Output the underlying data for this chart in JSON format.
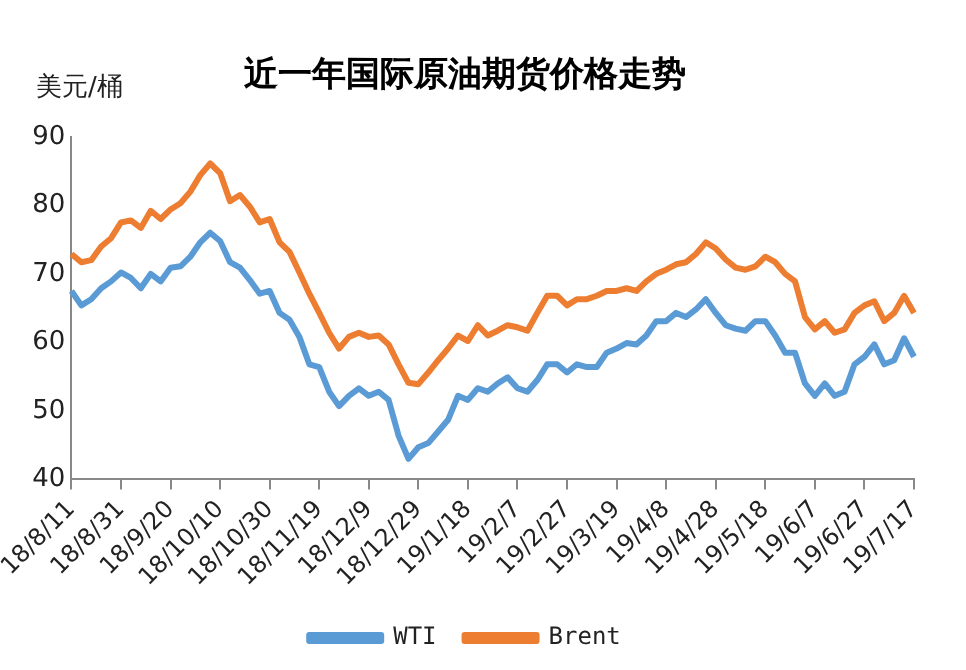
{
  "chart_data": {
    "type": "line",
    "title": "近一年国际原油期货价格走势",
    "ylabel": "美元/桶",
    "categories": [
      "18/8/11",
      null,
      null,
      null,
      null,
      "18/8/31",
      null,
      null,
      null,
      null,
      "18/9/20",
      null,
      null,
      null,
      null,
      "18/10/10",
      null,
      null,
      null,
      null,
      "18/10/30",
      null,
      null,
      null,
      null,
      "18/11/19",
      null,
      null,
      null,
      null,
      "18/12/9",
      null,
      null,
      null,
      null,
      "18/12/29",
      null,
      null,
      null,
      null,
      "19/1/18",
      null,
      null,
      null,
      null,
      "19/2/7",
      null,
      null,
      null,
      null,
      "19/2/27",
      null,
      null,
      null,
      null,
      "19/3/19",
      null,
      null,
      null,
      null,
      "19/4/8",
      null,
      null,
      null,
      null,
      "19/4/28",
      null,
      null,
      null,
      null,
      "19/5/18",
      null,
      null,
      null,
      null,
      "19/6/7",
      null,
      null,
      null,
      null,
      "19/6/27",
      null,
      null,
      null,
      null,
      "19/7/17"
    ],
    "series": [
      {
        "name": "WTI",
        "color": "#5b9bd5",
        "values": [
          67.5,
          65.4,
          66.3,
          67.9,
          68.9,
          70.2,
          69.4,
          67.9,
          70,
          68.9,
          70.9,
          71.1,
          72.5,
          74.6,
          76,
          74.8,
          71.7,
          70.9,
          69.1,
          67.1,
          67.5,
          64.3,
          63.3,
          60.8,
          56.8,
          56.4,
          52.8,
          50.7,
          52.2,
          53.3,
          52.2,
          52.8,
          51.6,
          46.4,
          43,
          44.7,
          45.3,
          47,
          48.7,
          52.2,
          51.6,
          53.3,
          52.8,
          54,
          54.9,
          53.3,
          52.8,
          54.5,
          56.8,
          56.8,
          55.6,
          56.8,
          56.4,
          56.4,
          58.5,
          59.1,
          59.9,
          59.7,
          61,
          63.1,
          63.1,
          64.3,
          63.7,
          64.8,
          66.3,
          64.3,
          62.5,
          62,
          61.7,
          63.1,
          63.1,
          61,
          58.5,
          58.5,
          54,
          52.2,
          54,
          52.2,
          52.8,
          56.8,
          57.9,
          59.7,
          56.8,
          57.4,
          60.6,
          57.9
        ]
      },
      {
        "name": "Brent",
        "color": "#ed7d31",
        "values": [
          72.9,
          71.7,
          72,
          74,
          75.2,
          77.5,
          77.8,
          76.7,
          79.2,
          78,
          79.4,
          80.3,
          82,
          84.4,
          86.1,
          84.7,
          80.6,
          81.5,
          79.8,
          77.5,
          78,
          74.6,
          73.2,
          70.2,
          67.1,
          64.3,
          61.4,
          59.1,
          60.8,
          61.4,
          60.8,
          61,
          59.7,
          56.8,
          54.1,
          53.9,
          55.6,
          57.4,
          59.1,
          61,
          60.2,
          62.5,
          61,
          61.7,
          62.5,
          62.2,
          61.7,
          64.3,
          66.8,
          66.8,
          65.4,
          66.3,
          66.3,
          66.8,
          67.5,
          67.5,
          67.9,
          67.5,
          68.9,
          70,
          70.6,
          71.4,
          71.7,
          72.9,
          74.6,
          73.7,
          72.1,
          70.9,
          70.6,
          71.1,
          72.5,
          71.7,
          70,
          68.9,
          63.7,
          61.9,
          63.1,
          61.4,
          61.9,
          64.3,
          65.4,
          66,
          63.1,
          64.3,
          66.8,
          64.3
        ]
      }
    ],
    "ylim": [
      40,
      90
    ],
    "yticks": [
      40,
      50,
      60,
      70,
      80,
      90
    ],
    "grid": false,
    "legend": "bottom",
    "marker": "none",
    "line_style": "solid"
  }
}
